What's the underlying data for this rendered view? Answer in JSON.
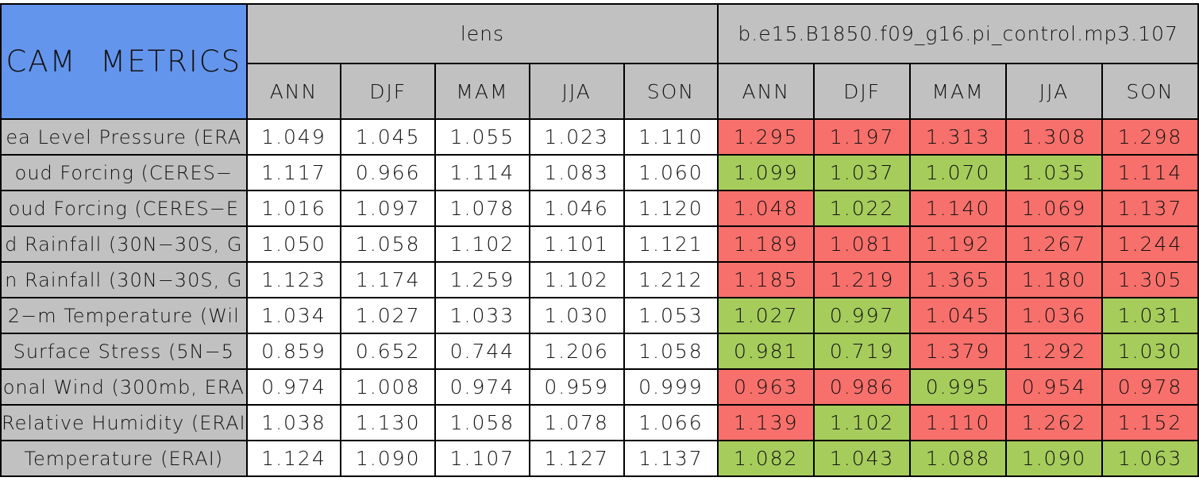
{
  "title": "CAM METRICS",
  "colors": {
    "title_bg": "#6495ED",
    "header_bg": "#C1C1C1",
    "label_bg": "#C1C1C1",
    "cell_bg": "#FFFFFF",
    "worse_bg": "#F7706B",
    "better_bg": "#A6CC5C",
    "border": "#000000",
    "text": "#111111"
  },
  "chart_data": {
    "type": "table",
    "title": "CAM METRICS",
    "column_groups": [
      "lens",
      "b.e15.B1850.f09_g16.pi_control.mp3.107"
    ],
    "seasons": [
      "ANN",
      "DJF",
      "MAM",
      "JJA",
      "SON"
    ],
    "cell_color_meaning": {
      "red": "worse score (highlighted red)",
      "green": "better score (highlighted green)",
      "plain": "reference lens values (white)"
    },
    "rows": [
      {
        "label": "ea Level Pressure (ERA",
        "lens": [
          "1.049",
          "1.045",
          "1.055",
          "1.023",
          "1.110"
        ],
        "model": [
          "1.295",
          "1.197",
          "1.313",
          "1.308",
          "1.298"
        ],
        "model_flags": [
          "red",
          "red",
          "red",
          "red",
          "red"
        ]
      },
      {
        "label": "oud Forcing (CERES−",
        "lens": [
          "1.117",
          "0.966",
          "1.114",
          "1.083",
          "1.060"
        ],
        "model": [
          "1.099",
          "1.037",
          "1.070",
          "1.035",
          "1.114"
        ],
        "model_flags": [
          "green",
          "green",
          "green",
          "green",
          "red"
        ]
      },
      {
        "label": "oud Forcing (CERES−E",
        "lens": [
          "1.016",
          "1.097",
          "1.078",
          "1.046",
          "1.120"
        ],
        "model": [
          "1.048",
          "1.022",
          "1.140",
          "1.069",
          "1.137"
        ],
        "model_flags": [
          "red",
          "green",
          "red",
          "red",
          "red"
        ]
      },
      {
        "label": "d Rainfall (30N−30S, G",
        "lens": [
          "1.050",
          "1.058",
          "1.102",
          "1.101",
          "1.121"
        ],
        "model": [
          "1.189",
          "1.081",
          "1.192",
          "1.267",
          "1.244"
        ],
        "model_flags": [
          "red",
          "red",
          "red",
          "red",
          "red"
        ]
      },
      {
        "label": "n Rainfall (30N−30S, G",
        "lens": [
          "1.123",
          "1.174",
          "1.259",
          "1.102",
          "1.212"
        ],
        "model": [
          "1.185",
          "1.219",
          "1.365",
          "1.180",
          "1.305"
        ],
        "model_flags": [
          "red",
          "red",
          "red",
          "red",
          "red"
        ]
      },
      {
        "label": "2−m Temperature (Wil",
        "lens": [
          "1.034",
          "1.027",
          "1.033",
          "1.030",
          "1.053"
        ],
        "model": [
          "1.027",
          "0.997",
          "1.045",
          "1.036",
          "1.031"
        ],
        "model_flags": [
          "green",
          "green",
          "red",
          "red",
          "green"
        ]
      },
      {
        "label": "Surface Stress (5N−5",
        "lens": [
          "0.859",
          "0.652",
          "0.744",
          "1.206",
          "1.058"
        ],
        "model": [
          "0.981",
          "0.719",
          "1.379",
          "1.292",
          "1.030"
        ],
        "model_flags": [
          "green",
          "green",
          "red",
          "red",
          "green"
        ]
      },
      {
        "label": "onal Wind (300mb, ERA",
        "lens": [
          "0.974",
          "1.008",
          "0.974",
          "0.959",
          "0.999"
        ],
        "model": [
          "0.963",
          "0.986",
          "0.995",
          "0.954",
          "0.978"
        ],
        "model_flags": [
          "red",
          "red",
          "green",
          "red",
          "red"
        ]
      },
      {
        "label": "Relative Humidity (ERAI",
        "lens": [
          "1.038",
          "1.130",
          "1.058",
          "1.078",
          "1.066"
        ],
        "model": [
          "1.139",
          "1.102",
          "1.110",
          "1.262",
          "1.152"
        ],
        "model_flags": [
          "red",
          "green",
          "red",
          "red",
          "red"
        ]
      },
      {
        "label": "Temperature (ERAI)",
        "lens": [
          "1.124",
          "1.090",
          "1.107",
          "1.127",
          "1.137"
        ],
        "model": [
          "1.082",
          "1.043",
          "1.088",
          "1.090",
          "1.063"
        ],
        "model_flags": [
          "green",
          "green",
          "green",
          "green",
          "green"
        ]
      }
    ]
  }
}
